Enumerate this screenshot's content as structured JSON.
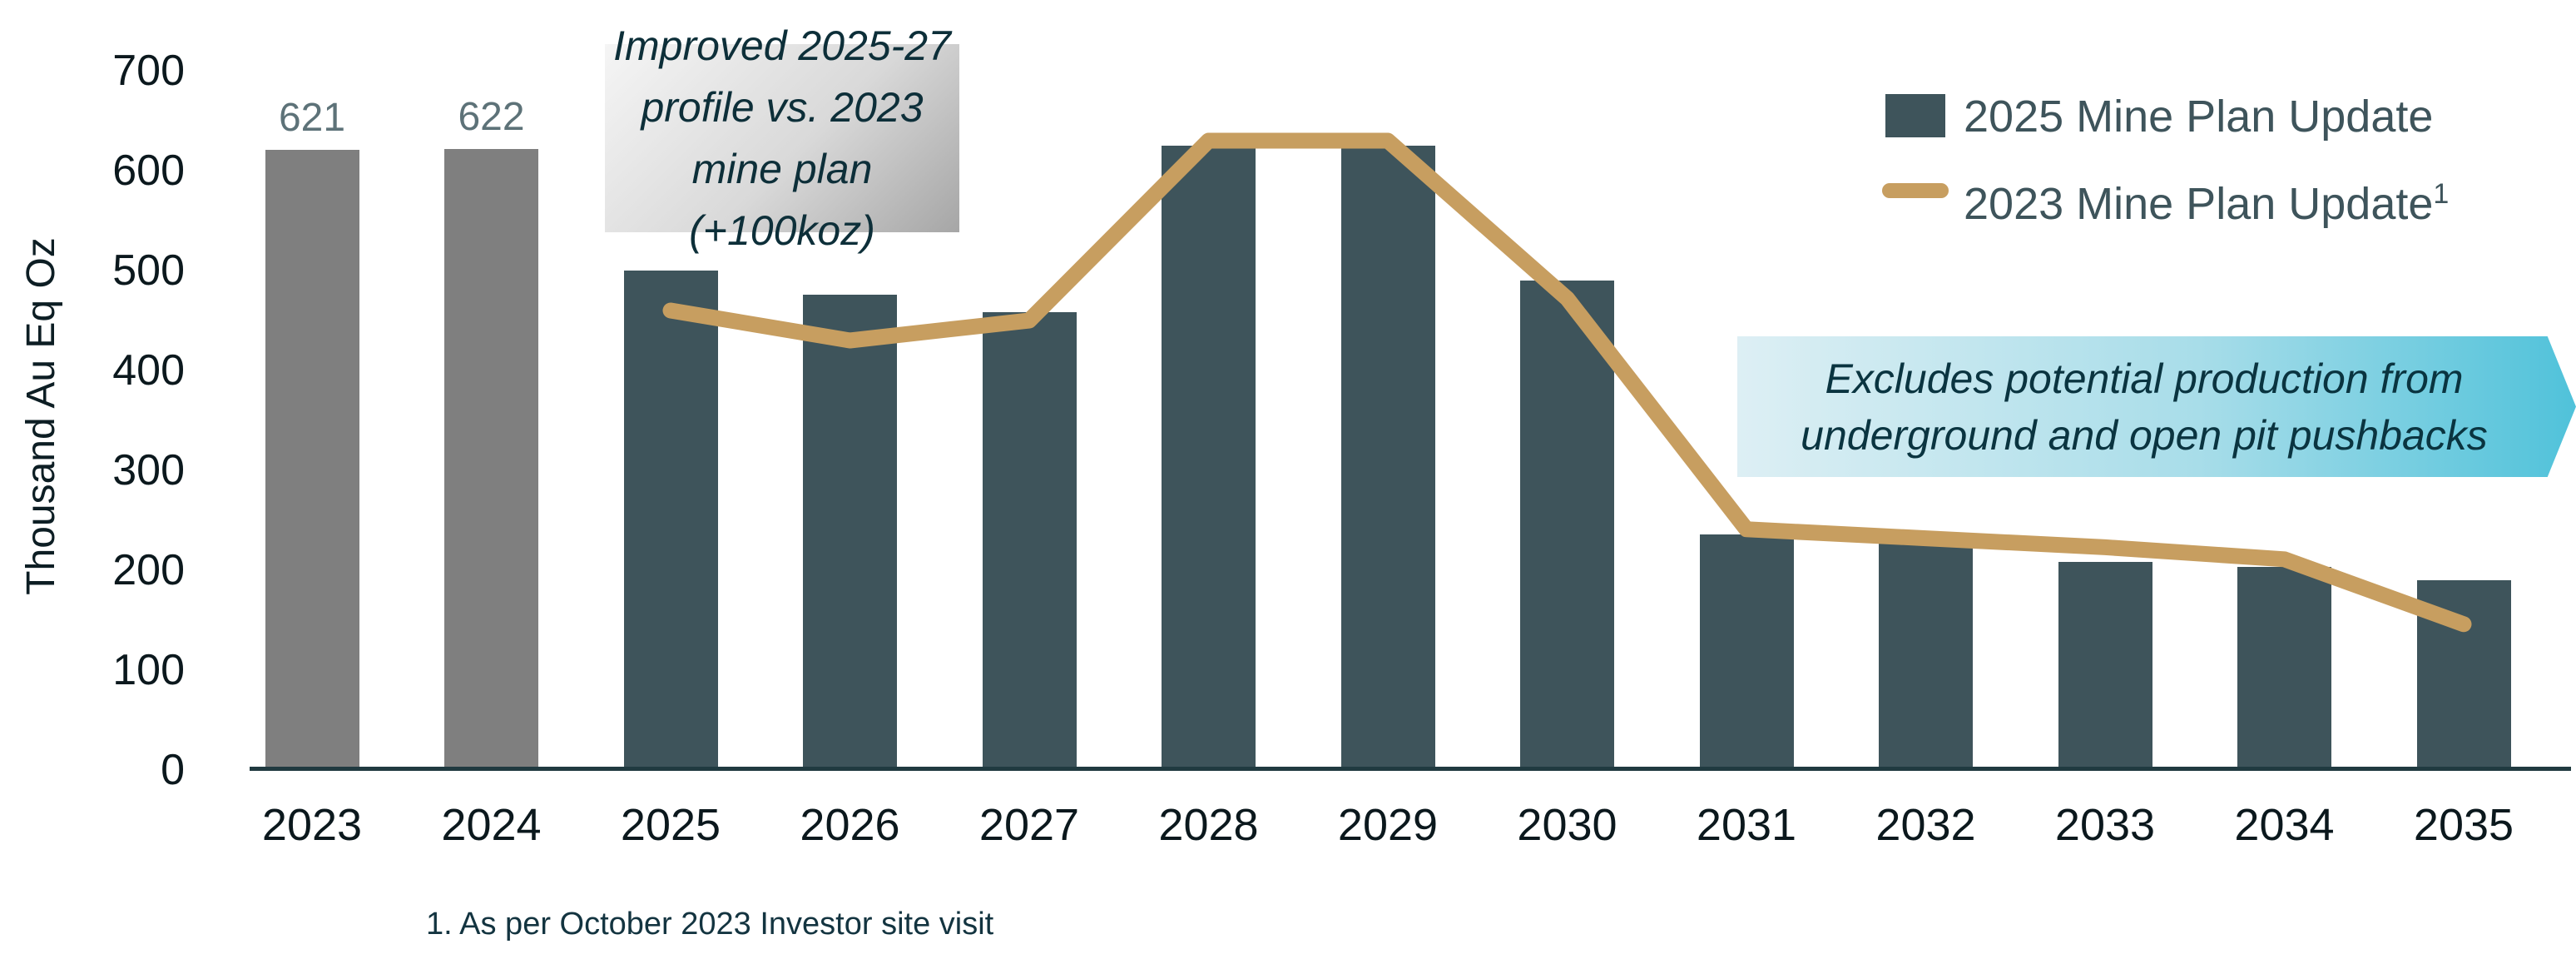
{
  "chart_data": {
    "type": "bar+line combo",
    "ylabel": "Thousand Au Eq Oz",
    "ylim": [
      0,
      700
    ],
    "yticks": [
      0,
      100,
      200,
      300,
      400,
      500,
      600,
      700
    ],
    "grid": "off",
    "categories": [
      "2023",
      "2024",
      "2025",
      "2026",
      "2027",
      "2028",
      "2029",
      "2030",
      "2031",
      "2032",
      "2033",
      "2034",
      "2035"
    ],
    "series": [
      {
        "name": "2025 Mine Plan Update",
        "type": "bar",
        "values": [
          621,
          622,
          500,
          476,
          458,
          625,
          625,
          490,
          236,
          228,
          208,
          203,
          190
        ],
        "color_default": "#3e545b",
        "color_overrides": {
          "2023": "#7f7f7f",
          "2024": "#7f7f7f"
        }
      },
      {
        "name": "2023 Mine Plan Update",
        "type": "line",
        "color": "#c79e60",
        "values": [
          null,
          null,
          460,
          430,
          450,
          630,
          630,
          472,
          241,
          232,
          223,
          211,
          146
        ]
      }
    ],
    "bar_value_labels": [
      {
        "category": "2023",
        "text": "621"
      },
      {
        "category": "2024",
        "text": "622"
      }
    ],
    "legend_position": "top-right"
  },
  "legend": {
    "bar_label": "2025 Mine Plan Update",
    "line_label": "2023 Mine Plan Update",
    "line_label_superscript": "1"
  },
  "annotations": {
    "gray_box": {
      "line1": "Improved 2025-27",
      "line2": "profile vs. 2023",
      "line3": "mine plan (+100koz)"
    },
    "blue_arrow": {
      "line1": "Excludes potential production from",
      "line2": "underground and open pit pushbacks"
    }
  },
  "axis": {
    "y_title": "Thousand Au Eq Oz"
  },
  "footnote": "1. As per October 2023 Investor site visit",
  "colors": {
    "bar_teal": "#3e545b",
    "bar_gray": "#7f7f7f",
    "line_tan": "#c79e60",
    "axis_line": "#203a40",
    "value_label": "#5d7278",
    "legend_text": "#3e545b"
  }
}
